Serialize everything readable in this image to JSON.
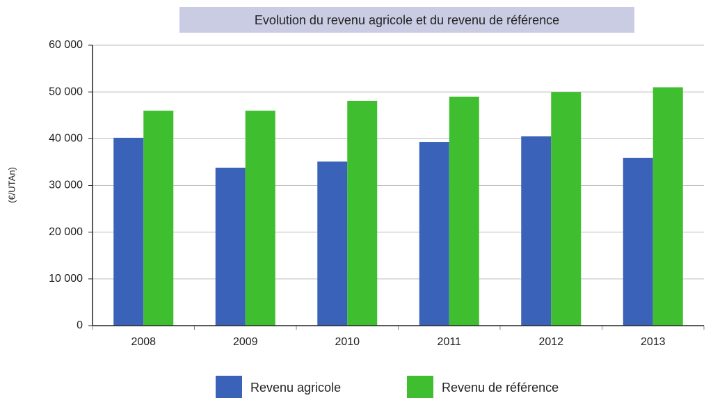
{
  "chart_data": {
    "type": "bar",
    "title": "Evolution du revenu agricole et du revenu de référence",
    "y_axis_label": "(€/UTAn)",
    "categories": [
      "2008",
      "2009",
      "2010",
      "2011",
      "2012",
      "2013"
    ],
    "series": [
      {
        "name": "Revenu agricole",
        "color": "#3a62b9",
        "values": [
          40200,
          33800,
          35100,
          39300,
          40500,
          35900
        ]
      },
      {
        "name": "Revenu de référence",
        "color": "#3fbf2f",
        "values": [
          46000,
          46000,
          48100,
          49000,
          50000,
          51000
        ]
      }
    ],
    "ylim": [
      0,
      60000
    ],
    "yticks": [
      {
        "value": 0,
        "label": "0"
      },
      {
        "value": 10000,
        "label": "10 000"
      },
      {
        "value": 20000,
        "label": "20 000"
      },
      {
        "value": 30000,
        "label": "30 000"
      },
      {
        "value": 40000,
        "label": "40 000"
      },
      {
        "value": 50000,
        "label": "50 000"
      },
      {
        "value": 60000,
        "label": "60 000"
      }
    ],
    "grid": true,
    "legend": "bottom"
  }
}
